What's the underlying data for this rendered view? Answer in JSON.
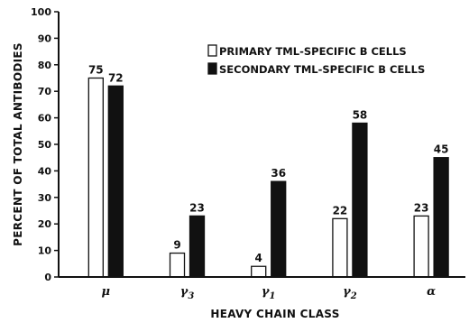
{
  "chart_data": {
    "type": "bar",
    "categories": [
      "μ",
      "γ3",
      "γ1",
      "γ2",
      "α"
    ],
    "category_labels": [
      {
        "base": "μ",
        "sub": ""
      },
      {
        "base": "γ",
        "sub": "3"
      },
      {
        "base": "γ",
        "sub": "1"
      },
      {
        "base": "γ",
        "sub": "2"
      },
      {
        "base": "α",
        "sub": ""
      }
    ],
    "series": [
      {
        "name": "PRIMARY TML-SPECIFIC B CELLS",
        "values": [
          75,
          9,
          4,
          22,
          23
        ],
        "fill": "#ffffff"
      },
      {
        "name": "SECONDARY TML-SPECIFIC B CELLS",
        "values": [
          72,
          23,
          36,
          58,
          45
        ],
        "fill": "#111111"
      }
    ],
    "xlabel": "HEAVY CHAIN CLASS",
    "ylabel": "PERCENT OF TOTAL ANTIBODIES",
    "ylim": [
      0,
      100
    ],
    "yticks": [
      0,
      10,
      20,
      30,
      40,
      50,
      60,
      70,
      80,
      90,
      100
    ],
    "grid": false,
    "legend": "top-right"
  }
}
